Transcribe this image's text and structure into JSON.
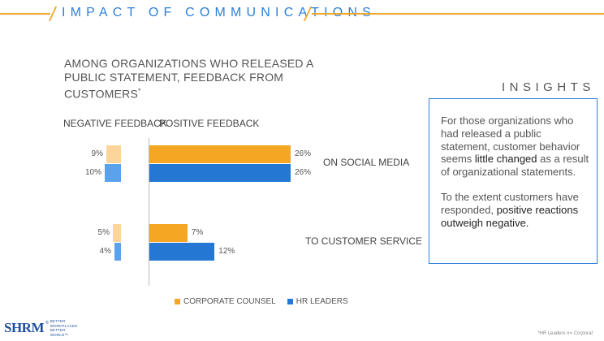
{
  "header": {
    "title": "IMPACT OF COMMUNICATIONS"
  },
  "chart_data": {
    "type": "bar",
    "title": "AMONG ORGANIZATIONS WHO RELEASED A PUBLIC STATEMENT, FEEDBACK FROM CUSTOMERS",
    "title_marker": "*",
    "negative_label": "NEGATIVE FEEDBACK",
    "positive_label": "POSITIVE FEEDBACK",
    "categories": [
      "ON SOCIAL MEDIA",
      "TO CUSTOMER SERVICE"
    ],
    "series": [
      {
        "name": "CORPORATE COUNSEL",
        "color": "#f5a623",
        "negative_color": "#fbd59a",
        "negative": [
          9,
          5
        ],
        "positive": [
          26,
          7
        ]
      },
      {
        "name": "HR LEADERS",
        "color": "#2478d4",
        "negative_color": "#5aa3ec",
        "negative": [
          10,
          4
        ],
        "positive": [
          26,
          12
        ]
      }
    ],
    "value_suffix": "%",
    "max_value": 26
  },
  "insights": {
    "title": "INSIGHTS",
    "paragraphs": [
      [
        {
          "text": "For those organizations who had released a public statement, customer behavior seems ",
          "hl": false
        },
        {
          "text": "little changed",
          "hl": true
        },
        {
          "text": " as a result of organizational statements.",
          "hl": false
        }
      ],
      [
        {
          "text": "To the extent customers have responded, ",
          "hl": false
        },
        {
          "text": "positive reactions outweigh negative.",
          "hl": true
        }
      ]
    ]
  },
  "footer": {
    "logo": "SHRM",
    "logo_reg": "®",
    "tagline": "BETTER WORKPLACES BETTER WORLD™",
    "footnote": "*HR Leaders n= Corporat"
  }
}
